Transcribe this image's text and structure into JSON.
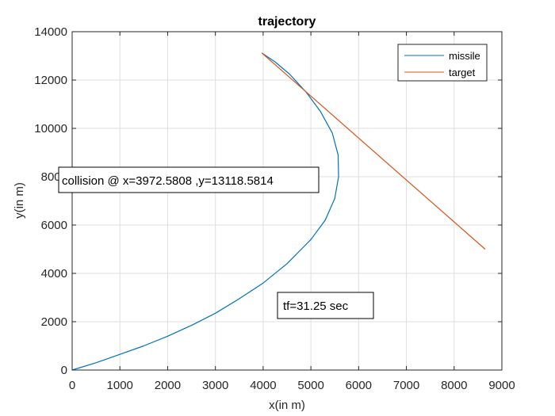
{
  "chart_data": {
    "type": "line",
    "title": "trajectory",
    "xlabel": "x(in m)",
    "ylabel": "y(in m)",
    "xlim": [
      0,
      9000
    ],
    "ylim": [
      0,
      14000
    ],
    "xticks": [
      "0",
      "1000",
      "2000",
      "3000",
      "4000",
      "5000",
      "6000",
      "7000",
      "8000",
      "9000"
    ],
    "yticks": [
      "0",
      "2000",
      "4000",
      "6000",
      "8000",
      "10000",
      "12000",
      "14000"
    ],
    "grid": true,
    "legend_position": "top-right",
    "series": [
      {
        "name": "missile",
        "color": "#0072BD",
        "x": [
          0,
          500,
          1000,
          1500,
          2000,
          2500,
          3000,
          3500,
          4000,
          4500,
          5000,
          5300,
          5500,
          5580,
          5570,
          5450,
          5200,
          4900,
          4550,
          4250,
          3972.58
        ],
        "y": [
          0,
          300,
          650,
          1000,
          1400,
          1850,
          2350,
          2950,
          3600,
          4400,
          5400,
          6200,
          7100,
          8000,
          8900,
          9800,
          10700,
          11500,
          12250,
          12750,
          13118.58
        ]
      },
      {
        "name": "target",
        "color": "#D95319",
        "x": [
          3972.58,
          8650
        ],
        "y": [
          13118.58,
          5000
        ]
      }
    ],
    "annotations": {
      "collision": "collision @ x=3972.5808 ,y=13118.5814",
      "tf": "tf=31.25 sec"
    }
  }
}
